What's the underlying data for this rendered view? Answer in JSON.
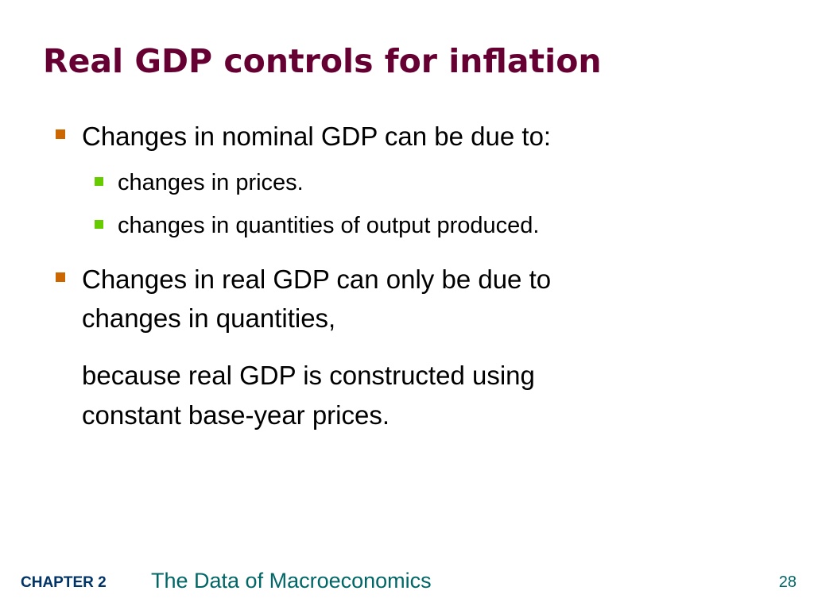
{
  "slide": {
    "title": "Real GDP controls for inflation",
    "colors": {
      "title": "#660033",
      "bullet_level1": "#CC6600",
      "bullet_level2": "#66CC00",
      "footer_chapter": "#003366",
      "footer_text": "#006666"
    },
    "bullets": [
      {
        "text": "Changes in nominal GDP can be due to:",
        "sub_bullets": [
          {
            "text": "changes in prices."
          },
          {
            "text": "changes in quantities of output produced."
          }
        ]
      },
      {
        "text": "Changes in real GDP can only be due to",
        "text_line2": "changes in quantities,"
      }
    ],
    "continuation": {
      "line1": "because real GDP is constructed using",
      "line2": "constant base-year prices."
    }
  },
  "footer": {
    "chapter_label": "CHAPTER 2",
    "book_title": "The Data of Macroeconomics",
    "page_number": "28"
  }
}
